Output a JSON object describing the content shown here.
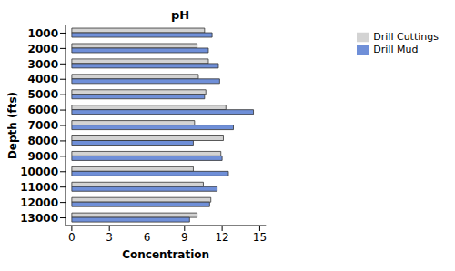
{
  "chart_data": {
    "type": "bar",
    "orientation": "horizontal",
    "title": "pH",
    "x_label": "Concentration",
    "y_label": "Depth (fts)",
    "categories": [
      "1000",
      "2000",
      "3000",
      "4000",
      "5000",
      "6000",
      "7000",
      "8000",
      "9000",
      "10000",
      "11000",
      "12000",
      "13000"
    ],
    "series": [
      {
        "name": "Drill Cuttings",
        "color": "#d3d3d3",
        "values": [
          10.6,
          10.0,
          10.9,
          10.1,
          10.7,
          12.3,
          9.8,
          12.1,
          11.9,
          9.7,
          10.5,
          11.1,
          10.0
        ]
      },
      {
        "name": "Drill Mud",
        "color": "#6f8fd8",
        "values": [
          11.2,
          10.9,
          11.7,
          11.8,
          10.6,
          14.5,
          12.9,
          9.7,
          12.0,
          12.5,
          11.6,
          11.0,
          9.4
        ]
      }
    ],
    "xlim": [
      -0.5,
      15.5
    ],
    "xticks": [
      0,
      3,
      6,
      9,
      12,
      15
    ],
    "legend": "top right",
    "grid": false
  }
}
